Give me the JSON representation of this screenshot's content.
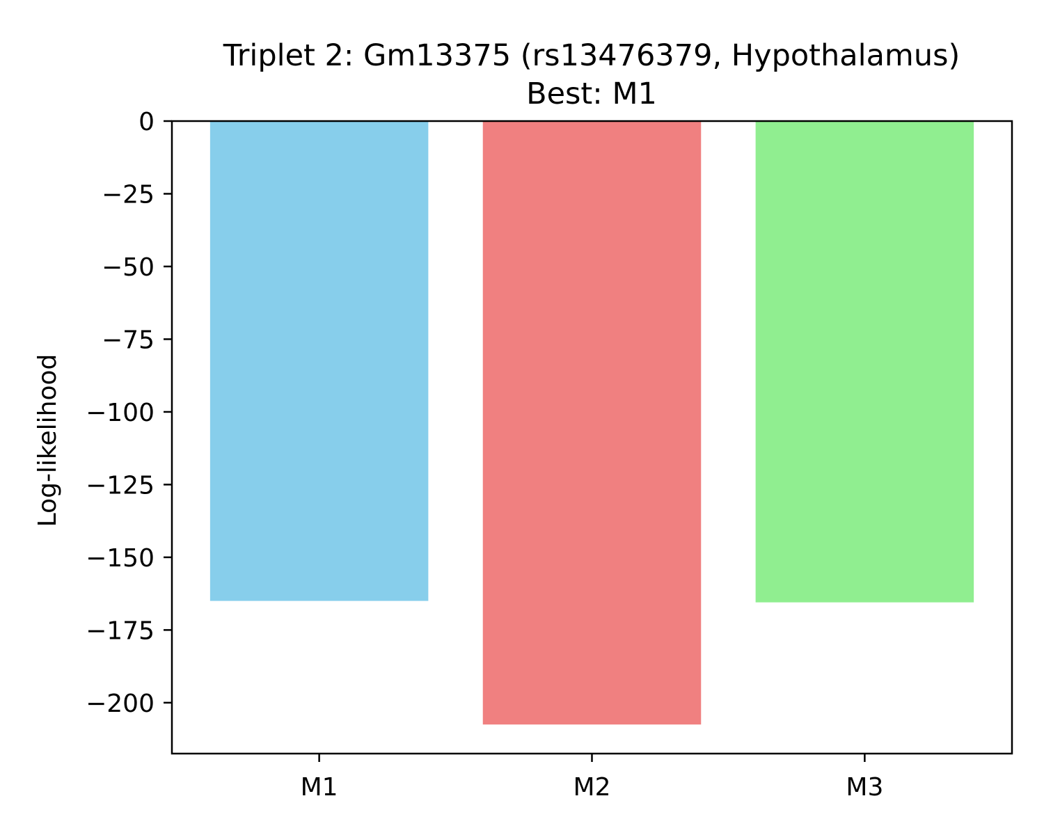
{
  "chart_data": {
    "type": "bar",
    "title": "Triplet 2: Gm13375 (rs13476379, Hypothalamus)",
    "subtitle": "Best: M1",
    "xlabel": "",
    "ylabel": "Log-likelihood",
    "categories": [
      "M1",
      "M2",
      "M3"
    ],
    "values": [
      -165,
      -207.5,
      -165.5
    ],
    "colors": [
      "#87CEEB",
      "#F08080",
      "#90EE90"
    ],
    "ylim": [
      -217.5,
      0
    ],
    "yticks": [
      0,
      -25,
      -50,
      -75,
      -100,
      -125,
      -150,
      -175,
      -200
    ],
    "ytick_labels": [
      "0",
      "−25",
      "−50",
      "−75",
      "−100",
      "−125",
      "−150",
      "−175",
      "−200"
    ],
    "grid": false,
    "legend": "none"
  }
}
